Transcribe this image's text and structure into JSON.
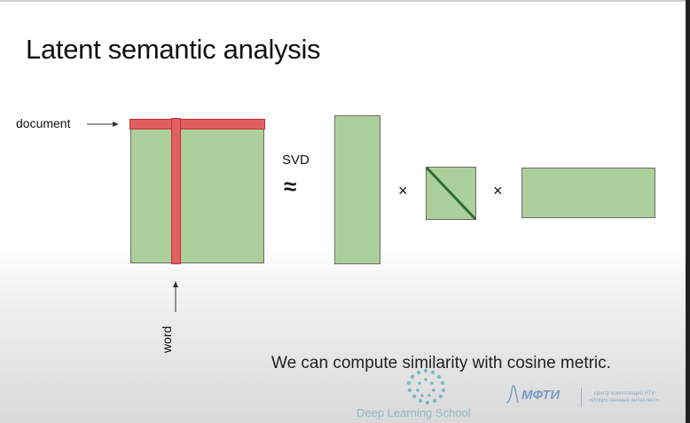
{
  "slide": {
    "title": "Latent semantic analysis",
    "labels": {
      "document": "document",
      "word": "word",
      "svd": "SVD",
      "approx": "≈",
      "times1": "×",
      "times2": "×"
    },
    "caption": "We can compute similarity with cosine metric.",
    "footer": {
      "school": "Deep Learning School",
      "mipt": "МФТИ",
      "center_line1": "Центр компетенций НТИ",
      "center_line2": "«Искусственный интеллект»"
    },
    "colors": {
      "matrix_fill": "#acd09b",
      "highlight": "#e06060",
      "diagonal": "#2f6b2f",
      "logo": "#7fb7c2"
    }
  }
}
